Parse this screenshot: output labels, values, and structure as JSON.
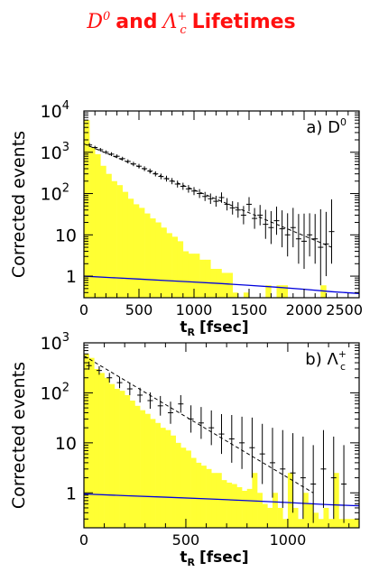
{
  "title": {
    "d_symbol": "D",
    "d_sup": "0",
    "and_text": "and",
    "lambda_symbol": "Λ",
    "lambda_sup": "+",
    "lambda_sub": "c",
    "tail_text": "Lifetimes"
  },
  "colors": {
    "title": "#ff1010",
    "fill": "#ffff33",
    "model": "#0000dd",
    "data": "#000000"
  },
  "chart_data": [
    {
      "type": "bar",
      "panel_label": "a) D",
      "panel_label_sup": "0",
      "ylabel": "Corrected events",
      "xlabel": "t",
      "xlabel_sub": "R",
      "xlabel_unit": "[fsec]",
      "log_y": true,
      "xlim": [
        0,
        2500
      ],
      "ylim": [
        0.3,
        10000
      ],
      "x_ticks": [
        0,
        500,
        1000,
        1500,
        2000,
        2500
      ],
      "y_ticks": [
        {
          "value": 1,
          "label": "1"
        },
        {
          "value": 10,
          "label": "10"
        },
        {
          "value": 100,
          "label": "10",
          "exp": "2"
        },
        {
          "value": 1000,
          "label": "10",
          "exp": "3"
        },
        {
          "value": 10000,
          "label": "10",
          "exp": "4"
        }
      ],
      "histogram": {
        "bin_width": 50,
        "values": [
          6000,
          1300,
          900,
          470,
          300,
          200,
          160,
          110,
          75,
          55,
          45,
          33,
          25,
          20,
          15,
          11,
          9,
          7,
          4,
          3.5,
          3.5,
          2.5,
          2.5,
          1.5,
          1.5,
          1.2,
          1.2,
          0.4,
          0.3,
          0.4,
          0.3,
          0.3,
          0.3,
          0.6,
          0.3,
          0.6,
          0.6,
          0.3,
          0.3,
          0.3,
          0.3,
          0.3,
          0.3,
          0.6,
          0.3,
          0.3,
          0.3,
          0.3,
          0.3,
          0.3
        ]
      },
      "data_points": {
        "x": [
          50,
          100,
          150,
          200,
          250,
          300,
          350,
          400,
          450,
          500,
          550,
          600,
          650,
          700,
          750,
          800,
          850,
          900,
          950,
          1000,
          1050,
          1100,
          1150,
          1200,
          1250,
          1300,
          1350,
          1400,
          1450,
          1500,
          1550,
          1600,
          1650,
          1700,
          1750,
          1800,
          1850,
          1900,
          1950,
          2000,
          2050,
          2100,
          2150,
          2200,
          2250
        ],
        "y": [
          1500,
          1300,
          1150,
          1000,
          900,
          800,
          700,
          600,
          520,
          460,
          400,
          350,
          300,
          260,
          230,
          200,
          170,
          150,
          130,
          115,
          100,
          85,
          75,
          65,
          80,
          55,
          45,
          40,
          30,
          55,
          25,
          30,
          18,
          15,
          22,
          14,
          10,
          15,
          8,
          7,
          10,
          8,
          5,
          6,
          12
        ],
        "err_lo": [
          1350,
          1180,
          1040,
          900,
          810,
          720,
          630,
          535,
          460,
          405,
          350,
          305,
          260,
          222,
          195,
          168,
          140,
          123,
          105,
          92,
          78,
          66,
          56,
          48,
          60,
          39,
          31,
          26,
          18,
          37,
          14,
          17,
          8,
          6,
          10,
          5,
          3,
          5,
          2,
          1.5,
          3,
          2,
          0.6,
          1,
          2
        ]
      },
      "fit_line": {
        "x0": 0,
        "y0": 1600,
        "x1": 2250,
        "y1": 5
      },
      "model_curve": {
        "x": [
          0,
          250,
          500,
          750,
          1000,
          1250,
          1500,
          1750,
          2000,
          2250,
          2500
        ],
        "y": [
          1.0,
          0.92,
          0.85,
          0.78,
          0.72,
          0.66,
          0.6,
          0.54,
          0.48,
          0.42,
          0.38
        ]
      }
    },
    {
      "type": "bar",
      "panel_label": "b) Λ",
      "panel_label_sup": "+",
      "panel_label_sub": "c",
      "ylabel": "Corrected events",
      "xlabel": "t",
      "xlabel_sub": "R",
      "xlabel_unit": "[fsec]",
      "log_y": true,
      "xlim": [
        0,
        1350
      ],
      "ylim": [
        0.2,
        1000
      ],
      "x_ticks": [
        0,
        500,
        1000
      ],
      "y_ticks": [
        {
          "value": 1,
          "label": "1"
        },
        {
          "value": 10,
          "label": "10"
        },
        {
          "value": 100,
          "label": "10",
          "exp": "2"
        },
        {
          "value": 1000,
          "label": "10",
          "exp": "3"
        }
      ],
      "histogram": {
        "bin_width": 25,
        "values": [
          600,
          500,
          300,
          250,
          200,
          150,
          120,
          110,
          90,
          70,
          55,
          45,
          38,
          30,
          25,
          20,
          18,
          14,
          10,
          8,
          7,
          5,
          4,
          3.5,
          3,
          2.5,
          2.5,
          1.8,
          1.6,
          1.5,
          1.3,
          1.1,
          1.2,
          2.5,
          1.0,
          0.6,
          0.5,
          1.0,
          0.5,
          0.3,
          2.5,
          0.5,
          0.3,
          1.0,
          0.6,
          0.4,
          0.3,
          0.5,
          0.3,
          2.5,
          0.3,
          0.3,
          0.3,
          0.3
        ]
      },
      "data_points": {
        "x": [
          25,
          75,
          125,
          175,
          225,
          275,
          325,
          375,
          425,
          475,
          525,
          575,
          625,
          675,
          725,
          775,
          825,
          875,
          925,
          975,
          1025,
          1075,
          1125,
          1175,
          1225,
          1275
        ],
        "y": [
          350,
          280,
          200,
          160,
          120,
          90,
          70,
          55,
          40,
          60,
          30,
          25,
          20,
          15,
          12,
          10,
          8,
          6,
          4,
          3,
          2.5,
          2,
          1.5,
          3,
          2,
          1.5
        ],
        "err_lo": [
          290,
          230,
          160,
          124,
          90,
          64,
          48,
          35,
          24,
          40,
          16,
          12,
          9,
          6,
          4,
          3,
          2,
          1.5,
          0.8,
          0.5,
          0.4,
          0.3,
          0.25,
          0.5,
          0.3,
          0.25
        ]
      },
      "fit_line": {
        "x0": 0,
        "y0": 550,
        "x1": 1125,
        "y1": 1.0
      },
      "model_curve": {
        "x": [
          0,
          200,
          400,
          600,
          800,
          1000,
          1200,
          1350
        ],
        "y": [
          0.95,
          0.88,
          0.82,
          0.76,
          0.7,
          0.64,
          0.58,
          0.55
        ]
      }
    }
  ]
}
